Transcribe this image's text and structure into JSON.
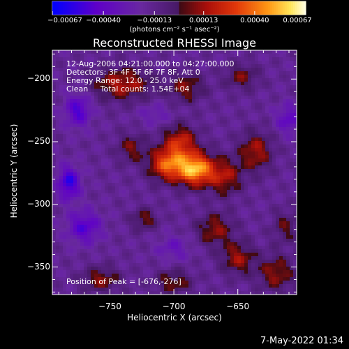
{
  "chart_data": {
    "type": "heatmap",
    "title": "Reconstructed RHESSI Image",
    "info_lines": [
      "12-Aug-2006 04:21:00.000 to 04:27:00.000",
      "Detectors: 3F 4F 5F 6F 7F 8F, Att 0",
      "Energy Range: 12.0 - 25.0 keV",
      "Clean     Total counts: 1.54E+04"
    ],
    "peak_label": "Position of Peak = [-676,-276]",
    "peak": [
      -676,
      -276
    ],
    "xlabel": "Heliocentric X (arcsec)",
    "ylabel": "Heliocentric Y (arcsec)",
    "xlim": [
      -795,
      -604
    ],
    "ylim": [
      -372,
      -177
    ],
    "xticks": [
      -750,
      -700,
      -650
    ],
    "xtick_labels": [
      "−750",
      "−700",
      "−650"
    ],
    "yticks": [
      -200,
      -250,
      -300,
      -350
    ],
    "ytick_labels": [
      "−200",
      "−250",
      "−300",
      "−350"
    ],
    "colorbar": {
      "range": [
        -0.00067,
        0.00067
      ],
      "ticks": [
        -0.00067,
        -0.0004,
        -0.00013,
        0.00013,
        0.0004,
        0.00067
      ],
      "tick_labels": [
        "−0.00067",
        "−0.00040",
        "−0.00013",
        "0.00013",
        "0.00040",
        "0.00067"
      ],
      "unit_label": "(photons cm⁻² s⁻¹ asec⁻²)"
    },
    "sources": [
      {
        "x": -683,
        "y": -272,
        "sx": 10,
        "sy": 9,
        "amp": 0.00067
      },
      {
        "x": -705,
        "y": -268,
        "sx": 10,
        "sy": 9,
        "amp": 0.0005
      },
      {
        "x": -695,
        "y": -250,
        "sx": 9,
        "sy": 9,
        "amp": 0.00036
      },
      {
        "x": -660,
        "y": -278,
        "sx": 9,
        "sy": 10,
        "amp": 0.0003
      },
      {
        "x": -636,
        "y": -258,
        "sx": 9,
        "sy": 11,
        "amp": 0.0003
      },
      {
        "x": -740,
        "y": -204,
        "sx": 16,
        "sy": 9,
        "amp": 0.00032
      },
      {
        "x": -690,
        "y": -207,
        "sx": 10,
        "sy": 8,
        "amp": 0.00024
      },
      {
        "x": -647,
        "y": -198,
        "sx": 9,
        "sy": 7,
        "amp": 0.00022
      },
      {
        "x": -668,
        "y": -320,
        "sx": 10,
        "sy": 9,
        "amp": 0.00026
      },
      {
        "x": -650,
        "y": -343,
        "sx": 9,
        "sy": 9,
        "amp": 0.00028
      },
      {
        "x": -723,
        "y": -312,
        "sx": 7,
        "sy": 6,
        "amp": 0.00022
      },
      {
        "x": -757,
        "y": -360,
        "sx": 10,
        "sy": 7,
        "amp": 0.00025
      },
      {
        "x": -700,
        "y": -362,
        "sx": 10,
        "sy": 7,
        "amp": 0.00022
      },
      {
        "x": -620,
        "y": -355,
        "sx": 10,
        "sy": 10,
        "amp": 0.00026
      },
      {
        "x": -613,
        "y": -318,
        "sx": 7,
        "sy": 9,
        "amp": 0.00018
      },
      {
        "x": -733,
        "y": -255,
        "sx": 8,
        "sy": 8,
        "amp": 0.00022
      },
      {
        "x": -782,
        "y": -283,
        "sx": 6,
        "sy": 9,
        "amp": -0.0004
      },
      {
        "x": -775,
        "y": -225,
        "sx": 7,
        "sy": 9,
        "amp": -0.00032
      },
      {
        "x": -770,
        "y": -318,
        "sx": 9,
        "sy": 9,
        "amp": -0.0003
      },
      {
        "x": -610,
        "y": -232,
        "sx": 7,
        "sy": 8,
        "amp": -0.00024
      },
      {
        "x": -700,
        "y": -335,
        "sx": 9,
        "sy": 7,
        "amp": -0.00016
      },
      {
        "x": -715,
        "y": -228,
        "sx": 9,
        "sy": 6,
        "amp": -0.00013
      }
    ],
    "colormap": "rainbow-negative / hot-positive"
  },
  "footer": {
    "date": "7-May-2022 01:34"
  }
}
